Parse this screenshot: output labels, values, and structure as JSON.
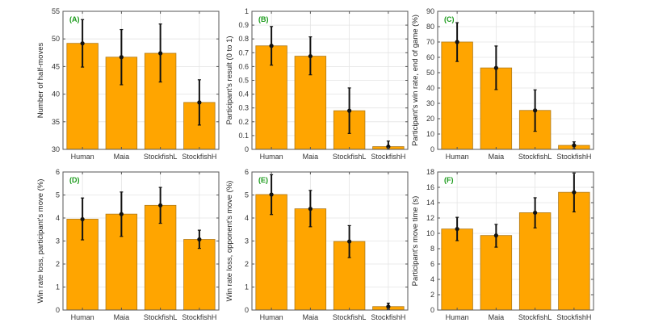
{
  "chart_data": [
    {
      "panel": "(A)",
      "type": "bar",
      "categories": [
        "Human",
        "Maia",
        "StockfishL",
        "StockfishH"
      ],
      "values": [
        49.2,
        46.7,
        47.4,
        38.5
      ],
      "error_low": [
        44.9,
        41.7,
        42.2,
        34.4
      ],
      "error_high": [
        53.5,
        51.7,
        52.7,
        42.6
      ],
      "ylabel": "Number of half-moves",
      "ylim": [
        30,
        55
      ],
      "yticks": [
        30,
        35,
        40,
        45,
        50,
        55
      ],
      "grid": true
    },
    {
      "panel": "(B)",
      "type": "bar",
      "categories": [
        "Human",
        "Maia",
        "StockfishL",
        "StockfishH"
      ],
      "values": [
        0.75,
        0.675,
        0.28,
        0.02
      ],
      "error_low": [
        0.61,
        0.54,
        0.115,
        0.0
      ],
      "error_high": [
        0.89,
        0.815,
        0.445,
        0.06
      ],
      "ylabel": "Participant's result (0 to 1)",
      "ylim": [
        0,
        1
      ],
      "yticks": [
        0,
        0.1,
        0.2,
        0.3,
        0.4,
        0.5,
        0.6,
        0.7,
        0.8,
        0.9,
        1
      ],
      "grid": true
    },
    {
      "panel": "(C)",
      "type": "bar",
      "categories": [
        "Human",
        "Maia",
        "StockfishL",
        "StockfishH"
      ],
      "values": [
        70,
        53.1,
        25.4,
        2.6
      ],
      "error_low": [
        57.3,
        39,
        11.8,
        0.3
      ],
      "error_high": [
        82.6,
        67.4,
        38.8,
        4.9
      ],
      "ylabel": "Participant's win rate, end of game (%)",
      "ylim": [
        0,
        90
      ],
      "yticks": [
        0,
        10,
        20,
        30,
        40,
        50,
        60,
        70,
        80,
        90
      ],
      "grid": true
    },
    {
      "panel": "(D)",
      "type": "bar",
      "categories": [
        "Human",
        "Maia",
        "StockfishL",
        "StockfishH"
      ],
      "values": [
        3.95,
        4.17,
        4.55,
        3.07
      ],
      "error_low": [
        3.05,
        3.2,
        3.77,
        2.68
      ],
      "error_high": [
        4.87,
        5.13,
        5.33,
        3.47
      ],
      "ylabel": "Win rate loss, participant's move (%)",
      "ylim": [
        0,
        6
      ],
      "yticks": [
        0,
        1,
        2,
        3,
        4,
        5,
        6
      ],
      "grid": true
    },
    {
      "panel": "(E)",
      "type": "bar",
      "categories": [
        "Human",
        "Maia",
        "StockfishL",
        "StockfishH"
      ],
      "values": [
        5.02,
        4.4,
        2.98,
        0.15
      ],
      "error_low": [
        4.15,
        3.62,
        2.28,
        0.03
      ],
      "error_high": [
        5.88,
        5.2,
        3.67,
        0.3
      ],
      "ylabel": "Win rate loss, opponent's move (%)",
      "ylim": [
        0,
        6
      ],
      "yticks": [
        0,
        1,
        2,
        3,
        4,
        5,
        6
      ],
      "grid": true
    },
    {
      "panel": "(F)",
      "type": "bar",
      "categories": [
        "Human",
        "Maia",
        "StockfishL",
        "StockfishH"
      ],
      "values": [
        10.57,
        9.72,
        12.69,
        15.35
      ],
      "error_low": [
        9.05,
        8.2,
        10.71,
        12.8
      ],
      "error_high": [
        12.09,
        11.17,
        14.64,
        17.86
      ],
      "ylabel": "Participant's move time (s)",
      "ylim": [
        0,
        18
      ],
      "yticks": [
        0,
        2,
        4,
        6,
        8,
        10,
        12,
        14,
        16,
        18
      ],
      "grid": true
    }
  ],
  "colors": {
    "bar": "#FFA500",
    "bar_edge": "#B07A1A",
    "error": "#111111",
    "panel_label": "#1a9a1a",
    "grid": "#e4e4e4"
  }
}
